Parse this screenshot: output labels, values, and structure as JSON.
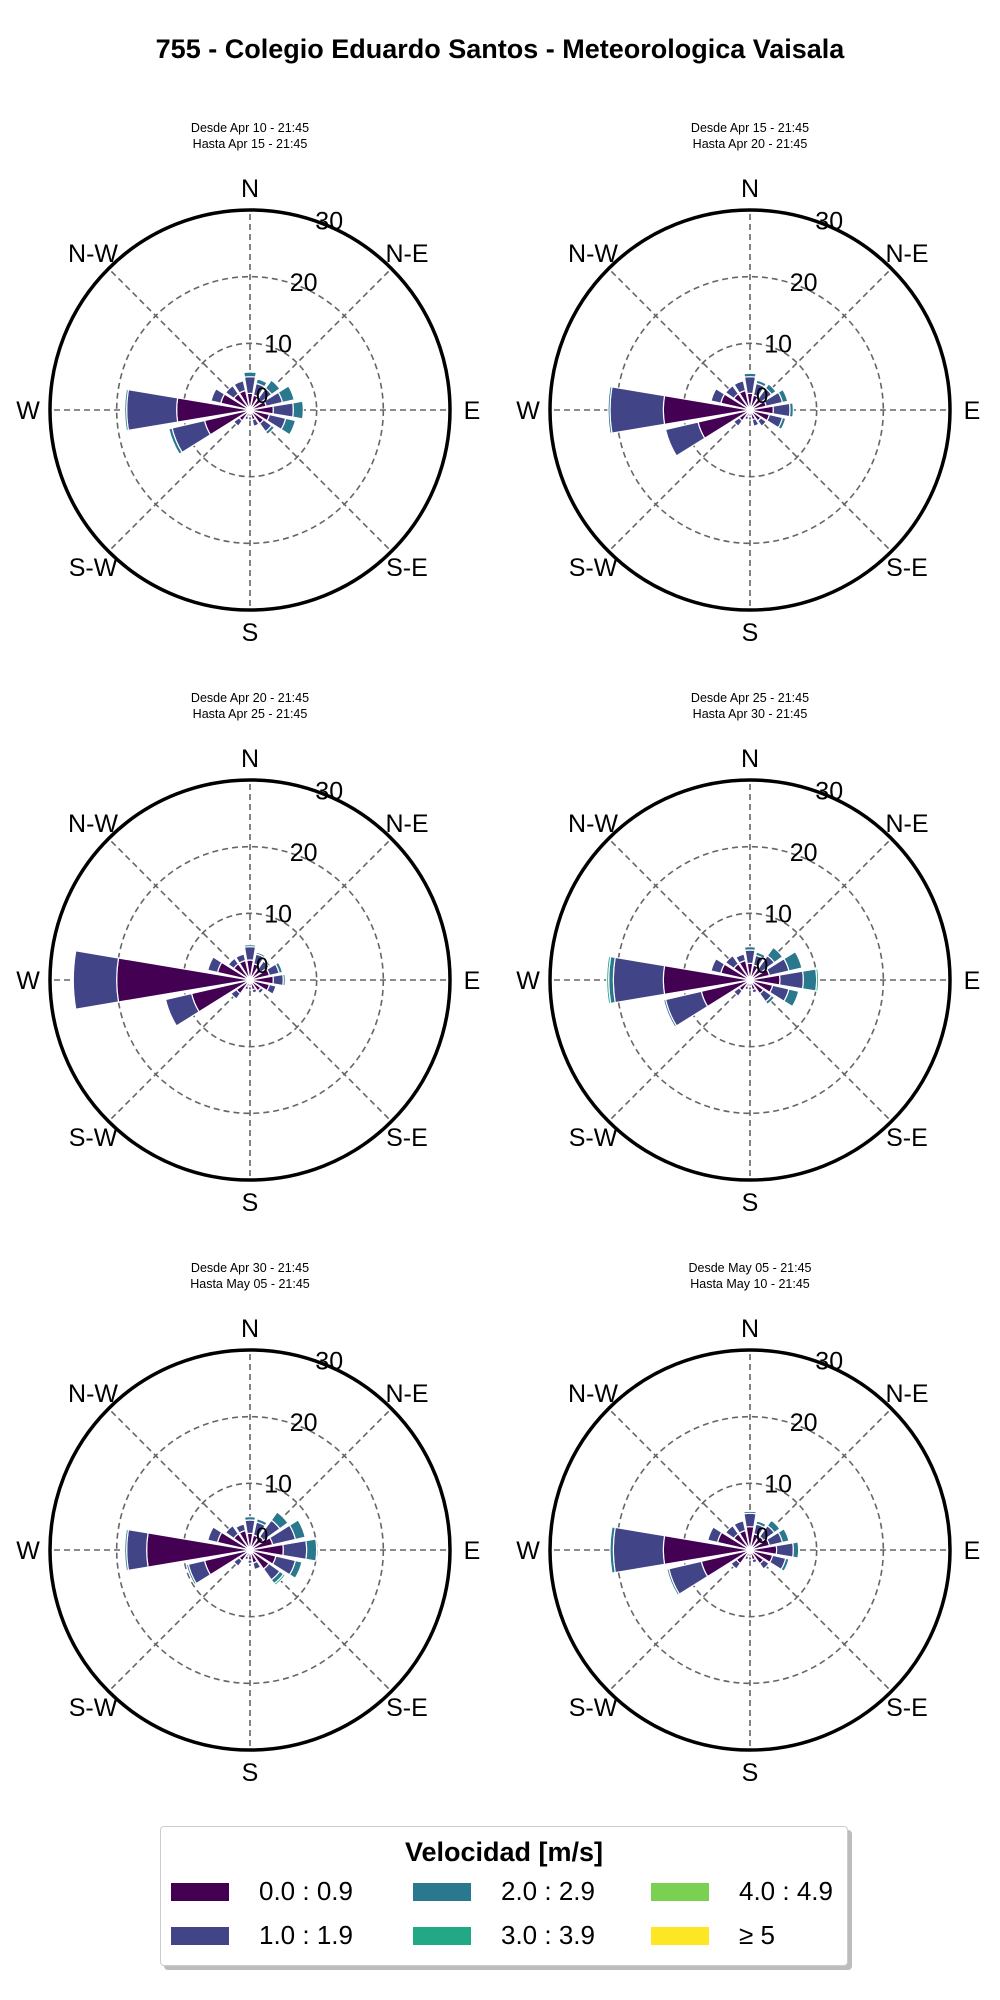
{
  "title": "755 - Colegio Eduardo Santos - Meteorologica Vaisala",
  "legend": {
    "title": "Velocidad [m/s]",
    "bins": [
      {
        "label": "0.0 : 0.9",
        "color": "#440154"
      },
      {
        "label": "1.0 : 1.9",
        "color": "#414487"
      },
      {
        "label": "2.0 : 2.9",
        "color": "#2a788e"
      },
      {
        "label": "3.0 : 3.9",
        "color": "#22a884"
      },
      {
        "label": "4.0 : 4.9",
        "color": "#7ad151"
      },
      {
        "label": "≥  5",
        "color": "#fde725"
      }
    ]
  },
  "compass_labels": [
    "N",
    "N-E",
    "E",
    "S-E",
    "S",
    "S-W",
    "W",
    "N-W"
  ],
  "chart_data": [
    {
      "type": "windrose",
      "period": [
        "Desde Apr 10 - 21:45",
        "Hasta Apr 15 - 21:45"
      ],
      "rlabels": [
        "10",
        "20",
        "30"
      ],
      "rmax": 30,
      "sectors": [
        {
          "dir": 0,
          "values": [
            2.5,
            2.5,
            0.7,
            0
          ]
        },
        {
          "dir": 22.5,
          "values": [
            2.3,
            1.8,
            0.7,
            0
          ]
        },
        {
          "dir": 45,
          "values": [
            2.0,
            2.0,
            1.5,
            0
          ]
        },
        {
          "dir": 67.5,
          "values": [
            2.5,
            2.5,
            1.8,
            0
          ]
        },
        {
          "dir": 90,
          "values": [
            3.5,
            3.0,
            1.5,
            0
          ]
        },
        {
          "dir": 112.5,
          "values": [
            3.0,
            2.5,
            1.5,
            0
          ]
        },
        {
          "dir": 135,
          "values": [
            2.5,
            1.5,
            0.5,
            0
          ]
        },
        {
          "dir": 157.5,
          "values": [
            1.5,
            1.0,
            0,
            0
          ]
        },
        {
          "dir": 180,
          "values": [
            1.0,
            0.5,
            0,
            0
          ]
        },
        {
          "dir": 202.5,
          "values": [
            1.0,
            0.5,
            0,
            0
          ]
        },
        {
          "dir": 225,
          "values": [
            2.0,
            1.0,
            0,
            0
          ]
        },
        {
          "dir": 247.5,
          "values": [
            7.0,
            5.0,
            0.5,
            0
          ]
        },
        {
          "dir": 270,
          "values": [
            11.0,
            7.5,
            0.3,
            0
          ]
        },
        {
          "dir": 292.5,
          "values": [
            4.5,
            1.5,
            0,
            0
          ]
        },
        {
          "dir": 315,
          "values": [
            3.0,
            1.5,
            0,
            0
          ]
        },
        {
          "dir": 337.5,
          "values": [
            3.0,
            1.5,
            0,
            0
          ]
        }
      ]
    },
    {
      "type": "windrose",
      "period": [
        "Desde Apr 15 - 21:45",
        "Hasta Apr 20 - 21:45"
      ],
      "rlabels": [
        "10",
        "20",
        "30"
      ],
      "rmax": 30,
      "sectors": [
        {
          "dir": 0,
          "values": [
            2.5,
            2.5,
            0.5,
            0
          ]
        },
        {
          "dir": 22.5,
          "values": [
            2.3,
            1.8,
            0.5,
            0
          ]
        },
        {
          "dir": 45,
          "values": [
            2.0,
            2.0,
            0.8,
            0
          ]
        },
        {
          "dir": 67.5,
          "values": [
            2.5,
            2.5,
            0.8,
            0
          ]
        },
        {
          "dir": 90,
          "values": [
            3.5,
            2.5,
            0.5,
            0
          ]
        },
        {
          "dir": 112.5,
          "values": [
            3.0,
            2.0,
            0.5,
            0
          ]
        },
        {
          "dir": 135,
          "values": [
            2.0,
            1.0,
            0,
            0
          ]
        },
        {
          "dir": 157.5,
          "values": [
            1.5,
            1.0,
            0,
            0
          ]
        },
        {
          "dir": 180,
          "values": [
            1.0,
            0.5,
            0,
            0
          ]
        },
        {
          "dir": 202.5,
          "values": [
            1.0,
            0.5,
            0,
            0
          ]
        },
        {
          "dir": 225,
          "values": [
            2.0,
            1.0,
            0,
            0
          ]
        },
        {
          "dir": 247.5,
          "values": [
            8.0,
            5.0,
            0,
            0
          ]
        },
        {
          "dir": 270,
          "values": [
            13.0,
            8.0,
            0.3,
            0
          ]
        },
        {
          "dir": 292.5,
          "values": [
            4.5,
            1.5,
            0,
            0
          ]
        },
        {
          "dir": 315,
          "values": [
            3.0,
            1.5,
            0,
            0
          ]
        },
        {
          "dir": 337.5,
          "values": [
            3.0,
            1.5,
            0,
            0
          ]
        }
      ]
    },
    {
      "type": "windrose",
      "period": [
        "Desde Apr 20 - 21:45",
        "Hasta Apr 25 - 21:45"
      ],
      "rlabels": [
        "10",
        "20",
        "30"
      ],
      "rmax": 30,
      "sectors": [
        {
          "dir": 0,
          "values": [
            3.0,
            2.0,
            0.3,
            0
          ]
        },
        {
          "dir": 22.5,
          "values": [
            2.5,
            1.5,
            0.3,
            0
          ]
        },
        {
          "dir": 45,
          "values": [
            2.0,
            1.5,
            0.3,
            0
          ]
        },
        {
          "dir": 67.5,
          "values": [
            3.0,
            1.5,
            0.5,
            0
          ]
        },
        {
          "dir": 90,
          "values": [
            3.5,
            1.5,
            0.3,
            0
          ]
        },
        {
          "dir": 112.5,
          "values": [
            3.0,
            1.0,
            0,
            0
          ]
        },
        {
          "dir": 135,
          "values": [
            2.0,
            0.5,
            0,
            0
          ]
        },
        {
          "dir": 157.5,
          "values": [
            1.5,
            0.5,
            0,
            0
          ]
        },
        {
          "dir": 180,
          "values": [
            1.0,
            0.5,
            0,
            0
          ]
        },
        {
          "dir": 202.5,
          "values": [
            1.0,
            0.5,
            0,
            0
          ]
        },
        {
          "dir": 225,
          "values": [
            2.5,
            1.0,
            0,
            0
          ]
        },
        {
          "dir": 247.5,
          "values": [
            9.0,
            4.0,
            0,
            0
          ]
        },
        {
          "dir": 270,
          "values": [
            20.0,
            6.5,
            0,
            0
          ]
        },
        {
          "dir": 292.5,
          "values": [
            5.0,
            1.5,
            0,
            0
          ]
        },
        {
          "dir": 315,
          "values": [
            3.0,
            1.0,
            0,
            0
          ]
        },
        {
          "dir": 337.5,
          "values": [
            3.0,
            1.0,
            0,
            0
          ]
        }
      ]
    },
    {
      "type": "windrose",
      "period": [
        "Desde Apr 25 - 21:45",
        "Hasta Apr 30 - 21:45"
      ],
      "rlabels": [
        "10",
        "20",
        "30"
      ],
      "rmax": 30,
      "sectors": [
        {
          "dir": 0,
          "values": [
            2.5,
            2.0,
            0.5,
            0
          ]
        },
        {
          "dir": 22.5,
          "values": [
            2.3,
            1.5,
            0.5,
            0
          ]
        },
        {
          "dir": 45,
          "values": [
            2.0,
            2.5,
            1.5,
            0
          ]
        },
        {
          "dir": 67.5,
          "values": [
            3.0,
            3.0,
            2.0,
            0
          ]
        },
        {
          "dir": 90,
          "values": [
            4.5,
            3.5,
            2.0,
            0.3
          ]
        },
        {
          "dir": 112.5,
          "values": [
            3.5,
            2.5,
            1.5,
            0
          ]
        },
        {
          "dir": 135,
          "values": [
            2.5,
            1.5,
            0.5,
            0
          ]
        },
        {
          "dir": 157.5,
          "values": [
            1.5,
            0.5,
            0,
            0
          ]
        },
        {
          "dir": 180,
          "values": [
            1.0,
            0.5,
            0,
            0
          ]
        },
        {
          "dir": 202.5,
          "values": [
            1.0,
            0.5,
            0,
            0
          ]
        },
        {
          "dir": 225,
          "values": [
            2.0,
            1.0,
            0,
            0
          ]
        },
        {
          "dir": 247.5,
          "values": [
            7.5,
            5.5,
            0.3,
            0
          ]
        },
        {
          "dir": 270,
          "values": [
            13.0,
            7.5,
            0.7,
            0.3
          ]
        },
        {
          "dir": 292.5,
          "values": [
            4.5,
            1.5,
            0,
            0
          ]
        },
        {
          "dir": 315,
          "values": [
            3.0,
            1.5,
            0,
            0
          ]
        },
        {
          "dir": 337.5,
          "values": [
            3.0,
            1.0,
            0,
            0
          ]
        }
      ]
    },
    {
      "type": "windrose",
      "period": [
        "Desde Apr 30 - 21:45",
        "Hasta May 05 - 21:45"
      ],
      "rlabels": [
        "10",
        "20",
        "30"
      ],
      "rmax": 30,
      "sectors": [
        {
          "dir": 0,
          "values": [
            2.5,
            2.0,
            0.5,
            0
          ]
        },
        {
          "dir": 22.5,
          "values": [
            2.3,
            2.0,
            0.5,
            0
          ]
        },
        {
          "dir": 45,
          "values": [
            2.5,
            3.0,
            1.5,
            0
          ]
        },
        {
          "dir": 67.5,
          "values": [
            3.5,
            3.5,
            1.5,
            0
          ]
        },
        {
          "dir": 90,
          "values": [
            5.0,
            3.5,
            1.5,
            0
          ]
        },
        {
          "dir": 112.5,
          "values": [
            4.0,
            3.0,
            1.0,
            0
          ]
        },
        {
          "dir": 135,
          "values": [
            3.5,
            2.0,
            0.7,
            0.3
          ]
        },
        {
          "dir": 157.5,
          "values": [
            2.0,
            1.0,
            0,
            0
          ]
        },
        {
          "dir": 180,
          "values": [
            1.5,
            0.5,
            0,
            0
          ]
        },
        {
          "dir": 202.5,
          "values": [
            1.0,
            0.5,
            0,
            0
          ]
        },
        {
          "dir": 225,
          "values": [
            2.0,
            1.0,
            0,
            0
          ]
        },
        {
          "dir": 247.5,
          "values": [
            7.0,
            2.5,
            0.3,
            0
          ]
        },
        {
          "dir": 270,
          "values": [
            15.5,
            3.0,
            0.3,
            0
          ]
        },
        {
          "dir": 292.5,
          "values": [
            5.0,
            1.5,
            0,
            0
          ]
        },
        {
          "dir": 315,
          "values": [
            3.0,
            1.5,
            0,
            0
          ]
        },
        {
          "dir": 337.5,
          "values": [
            3.0,
            1.0,
            0,
            0
          ]
        }
      ]
    },
    {
      "type": "windrose",
      "period": [
        "Desde May 05 - 21:45",
        "Hasta May 10 - 21:45"
      ],
      "rlabels": [
        "10",
        "20",
        "30"
      ],
      "rmax": 30,
      "sectors": [
        {
          "dir": 0,
          "values": [
            3.5,
            2.0,
            0.3,
            0
          ]
        },
        {
          "dir": 22.5,
          "values": [
            2.5,
            1.5,
            0.5,
            0
          ]
        },
        {
          "dir": 45,
          "values": [
            2.5,
            2.0,
            1.0,
            0
          ]
        },
        {
          "dir": 67.5,
          "values": [
            3.0,
            2.0,
            1.0,
            0
          ]
        },
        {
          "dir": 90,
          "values": [
            4.0,
            2.5,
            0.8,
            0
          ]
        },
        {
          "dir": 112.5,
          "values": [
            3.5,
            2.0,
            0.5,
            0
          ]
        },
        {
          "dir": 135,
          "values": [
            2.5,
            1.0,
            0,
            0
          ]
        },
        {
          "dir": 157.5,
          "values": [
            1.5,
            0.5,
            0,
            0
          ]
        },
        {
          "dir": 180,
          "values": [
            1.0,
            0.5,
            0,
            0
          ]
        },
        {
          "dir": 202.5,
          "values": [
            1.0,
            0.5,
            0,
            0
          ]
        },
        {
          "dir": 225,
          "values": [
            2.5,
            1.0,
            0,
            0
          ]
        },
        {
          "dir": 247.5,
          "values": [
            7.5,
            5.0,
            0.3,
            0
          ]
        },
        {
          "dir": 270,
          "values": [
            13.0,
            7.5,
            0.5,
            0
          ]
        },
        {
          "dir": 292.5,
          "values": [
            5.0,
            1.5,
            0,
            0
          ]
        },
        {
          "dir": 315,
          "values": [
            3.0,
            1.5,
            0,
            0
          ]
        },
        {
          "dir": 337.5,
          "values": [
            3.0,
            1.5,
            0,
            0
          ]
        }
      ]
    }
  ]
}
